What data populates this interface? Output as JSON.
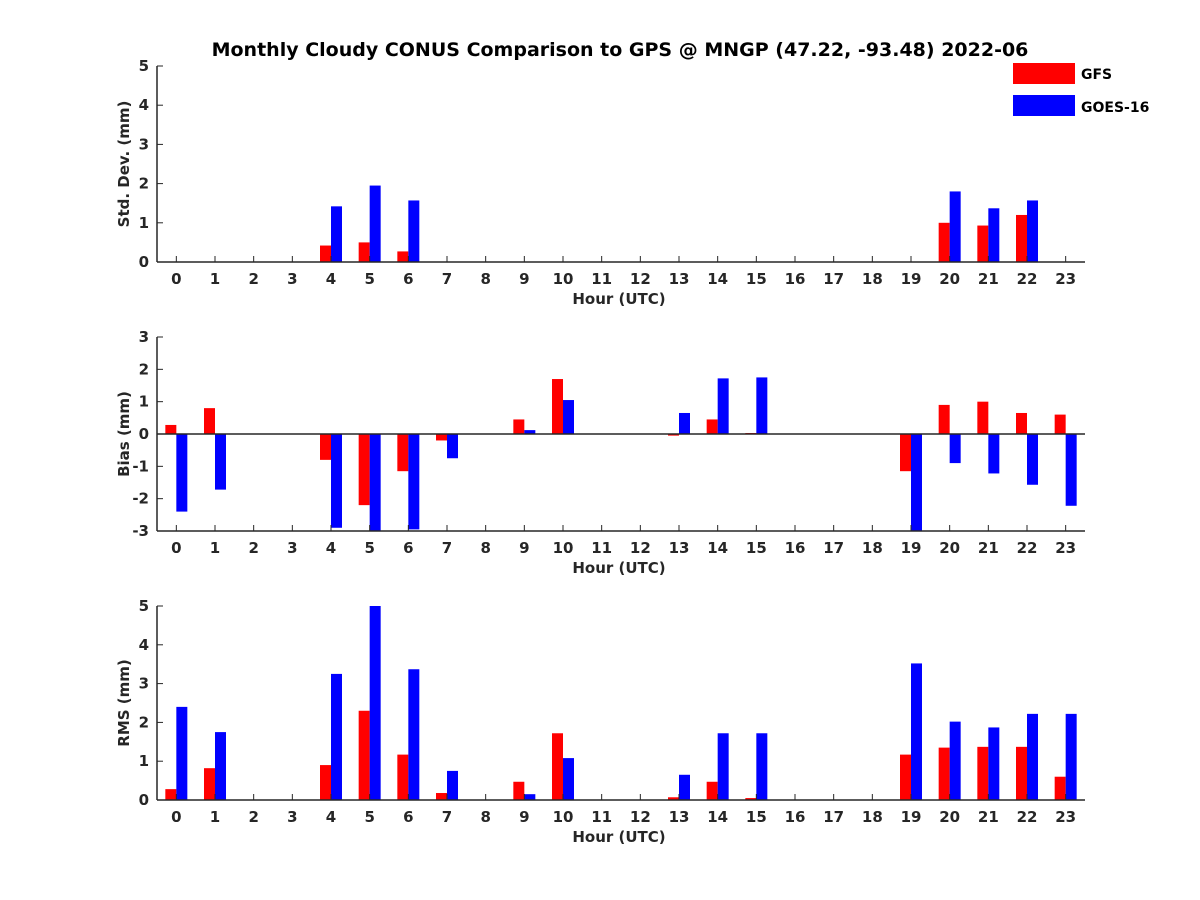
{
  "chart_data": {
    "title": "Monthly Cloudy CONUS Comparison to GPS @ MNGP (47.22, -93.48) 2022-06",
    "legend": {
      "placement": "top-right",
      "entries": [
        {
          "name": "GFS",
          "color": "#ff0000"
        },
        {
          "name": "GOES-16",
          "color": "#0000ff"
        }
      ]
    },
    "panels": [
      {
        "type": "bar",
        "xlabel": "Hour (UTC)",
        "ylabel": "Std. Dev. (mm)",
        "ylim": [
          0,
          5
        ],
        "yticks": [
          0,
          1,
          2,
          3,
          4,
          5
        ],
        "categories": [
          "0",
          "1",
          "2",
          "3",
          "4",
          "5",
          "6",
          "7",
          "8",
          "9",
          "10",
          "11",
          "12",
          "13",
          "14",
          "15",
          "16",
          "17",
          "18",
          "19",
          "20",
          "21",
          "22",
          "23"
        ],
        "series": [
          {
            "name": "GFS",
            "color": "#ff0000",
            "values": [
              0,
              0,
              0,
              0,
              0.42,
              0.5,
              0.27,
              0,
              0,
              0,
              0,
              0,
              0,
              0,
              0,
              0,
              0,
              0,
              0,
              0,
              1.0,
              0.93,
              1.2,
              0
            ]
          },
          {
            "name": "GOES-16",
            "color": "#0000ff",
            "values": [
              0,
              0,
              0,
              0,
              1.42,
              1.95,
              1.57,
              0,
              0,
              0,
              0,
              0,
              0,
              0,
              0,
              0,
              0,
              0,
              0,
              0,
              1.8,
              1.37,
              1.57,
              0
            ]
          }
        ]
      },
      {
        "type": "bar",
        "xlabel": "Hour (UTC)",
        "ylabel": "Bias (mm)",
        "ylim": [
          -3,
          3
        ],
        "yticks": [
          -3,
          -2,
          -1,
          0,
          1,
          2,
          3
        ],
        "categories": [
          "0",
          "1",
          "2",
          "3",
          "4",
          "5",
          "6",
          "7",
          "8",
          "9",
          "10",
          "11",
          "12",
          "13",
          "14",
          "15",
          "16",
          "17",
          "18",
          "19",
          "20",
          "21",
          "22",
          "23"
        ],
        "series": [
          {
            "name": "GFS",
            "color": "#ff0000",
            "values": [
              0.28,
              0.8,
              0,
              0,
              -0.8,
              -2.2,
              -1.15,
              -0.2,
              0,
              0.45,
              1.7,
              0,
              0,
              -0.05,
              0.45,
              0.03,
              0,
              0,
              0,
              -1.15,
              0.9,
              1.0,
              0.65,
              0.6
            ]
          },
          {
            "name": "GOES-16",
            "color": "#0000ff",
            "values": [
              -2.4,
              -1.72,
              0,
              0,
              -2.9,
              -3.0,
              -2.95,
              -0.75,
              0,
              0.12,
              1.05,
              0,
              0,
              0.65,
              1.72,
              1.75,
              0,
              0,
              0,
              -3.0,
              -0.9,
              -1.22,
              -1.57,
              -2.22
            ]
          }
        ]
      },
      {
        "type": "bar",
        "xlabel": "Hour (UTC)",
        "ylabel": "RMS (mm)",
        "ylim": [
          0,
          5
        ],
        "yticks": [
          0,
          1,
          2,
          3,
          4,
          5
        ],
        "categories": [
          "0",
          "1",
          "2",
          "3",
          "4",
          "5",
          "6",
          "7",
          "8",
          "9",
          "10",
          "11",
          "12",
          "13",
          "14",
          "15",
          "16",
          "17",
          "18",
          "19",
          "20",
          "21",
          "22",
          "23"
        ],
        "series": [
          {
            "name": "GFS",
            "color": "#ff0000",
            "values": [
              0.28,
              0.82,
              0,
              0,
              0.9,
              2.3,
              1.17,
              0.18,
              0,
              0.47,
              1.72,
              0,
              0,
              0.07,
              0.47,
              0.05,
              0,
              0,
              0,
              1.17,
              1.35,
              1.37,
              1.37,
              0.6
            ]
          },
          {
            "name": "GOES-16",
            "color": "#0000ff",
            "values": [
              2.4,
              1.75,
              0,
              0,
              3.25,
              5.0,
              3.37,
              0.75,
              0,
              0.15,
              1.08,
              0,
              0,
              0.65,
              1.72,
              1.72,
              0,
              0,
              0,
              3.52,
              2.02,
              1.87,
              2.22,
              2.22
            ]
          }
        ]
      }
    ]
  }
}
